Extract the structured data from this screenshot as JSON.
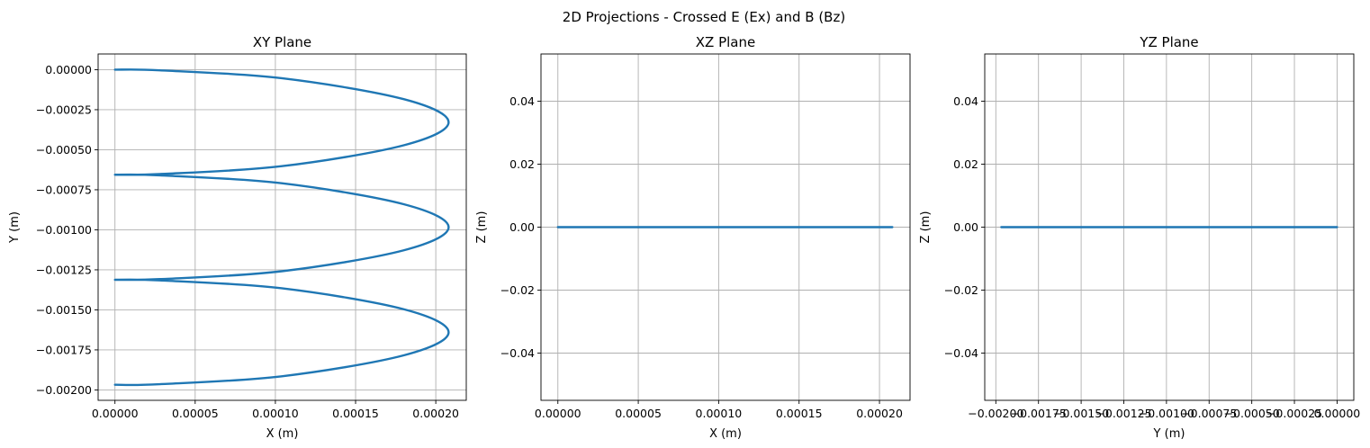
{
  "figure": {
    "suptitle": "2D Projections - Crossed E (Ex) and B (Bz)"
  },
  "chart_data": [
    {
      "type": "line",
      "title": "XY Plane",
      "xlabel": "X (m)",
      "ylabel": "Y (m)",
      "xlim": [
        -1.05e-05,
        0.000219
      ],
      "ylim": [
        -0.002065,
        9.8e-05
      ],
      "xticks": [
        0,
        5e-05,
        0.0001,
        0.00015,
        0.0002
      ],
      "xtick_labels": [
        "0.00000",
        "0.00005",
        "0.00010",
        "0.00015",
        "0.00020"
      ],
      "yticks": [
        0,
        -0.00025,
        -0.0005,
        -0.00075,
        -0.001,
        -0.00125,
        -0.0015,
        -0.00175,
        -0.002
      ],
      "ytick_labels": [
        "0.00000",
        "−0.00025",
        "−0.00050",
        "−0.00075",
        "−0.00100",
        "−0.00125",
        "−0.00150",
        "−0.00175",
        "−0.00200"
      ],
      "grid": true,
      "color": "#1f77b4",
      "series": [
        {
          "x": [
            0,
            2.8e-05,
            0.000104,
            0.00018,
            0.000208,
            0.00018,
            0.000104,
            2.8e-05,
            0,
            2.8e-05,
            0.000104,
            0.00018,
            0.000208,
            0.00018,
            0.000104,
            2.8e-05,
            0,
            2.8e-05,
            0.000104,
            0.00018,
            0.000208,
            0.00018,
            0.000104,
            2.8e-05,
            0
          ],
          "y": [
            0,
            -4e-06,
            -5.34e-05,
            -0.0001841,
            -0.000328,
            -0.0004721,
            -0.0006028,
            -0.000652,
            -0.000656,
            -0.00066,
            -0.0007094,
            -0.0008401,
            -0.000984,
            -0.0011281,
            -0.0012588,
            -0.001308,
            -0.001312,
            -0.001316,
            -0.0013654,
            -0.0014961,
            -0.00164,
            -0.0017841,
            -0.0019148,
            -0.001964,
            -0.001968
          ]
        }
      ]
    },
    {
      "type": "line",
      "title": "XZ Plane",
      "xlabel": "X (m)",
      "ylabel": "Z (m)",
      "xlim": [
        -1.05e-05,
        0.000219
      ],
      "ylim": [
        -0.055,
        0.055
      ],
      "xticks": [
        0,
        5e-05,
        0.0001,
        0.00015,
        0.0002
      ],
      "xtick_labels": [
        "0.00000",
        "0.00005",
        "0.00010",
        "0.00015",
        "0.00020"
      ],
      "yticks": [
        0.04,
        0.02,
        0,
        -0.02,
        -0.04
      ],
      "ytick_labels": [
        "0.04",
        "0.02",
        "0.00",
        "−0.02",
        "−0.04"
      ],
      "grid": true,
      "color": "#1f77b4",
      "series": [
        {
          "x": [
            0,
            0.000208
          ],
          "y": [
            0,
            0
          ]
        }
      ]
    },
    {
      "type": "line",
      "title": "YZ Plane",
      "xlabel": "Y (m)",
      "ylabel": "Z (m)",
      "xlim": [
        -0.002065,
        9.8e-05
      ],
      "ylim": [
        -0.055,
        0.055
      ],
      "xticks": [
        -0.002,
        -0.00175,
        -0.0015,
        -0.00125,
        -0.001,
        -0.00075,
        -0.0005,
        -0.00025,
        0
      ],
      "xtick_labels": [
        "−0.00200",
        "−0.00175",
        "−0.00150",
        "−0.00125",
        "−0.00100",
        "−0.00075",
        "−0.00050",
        "−0.00025",
        "0.00000"
      ],
      "yticks": [
        0.04,
        0.02,
        0,
        -0.02,
        -0.04
      ],
      "ytick_labels": [
        "0.04",
        "0.02",
        "0.00",
        "−0.02",
        "−0.04"
      ],
      "grid": true,
      "color": "#1f77b4",
      "series": [
        {
          "x": [
            -0.001968,
            0
          ],
          "y": [
            0,
            0
          ]
        }
      ]
    }
  ]
}
